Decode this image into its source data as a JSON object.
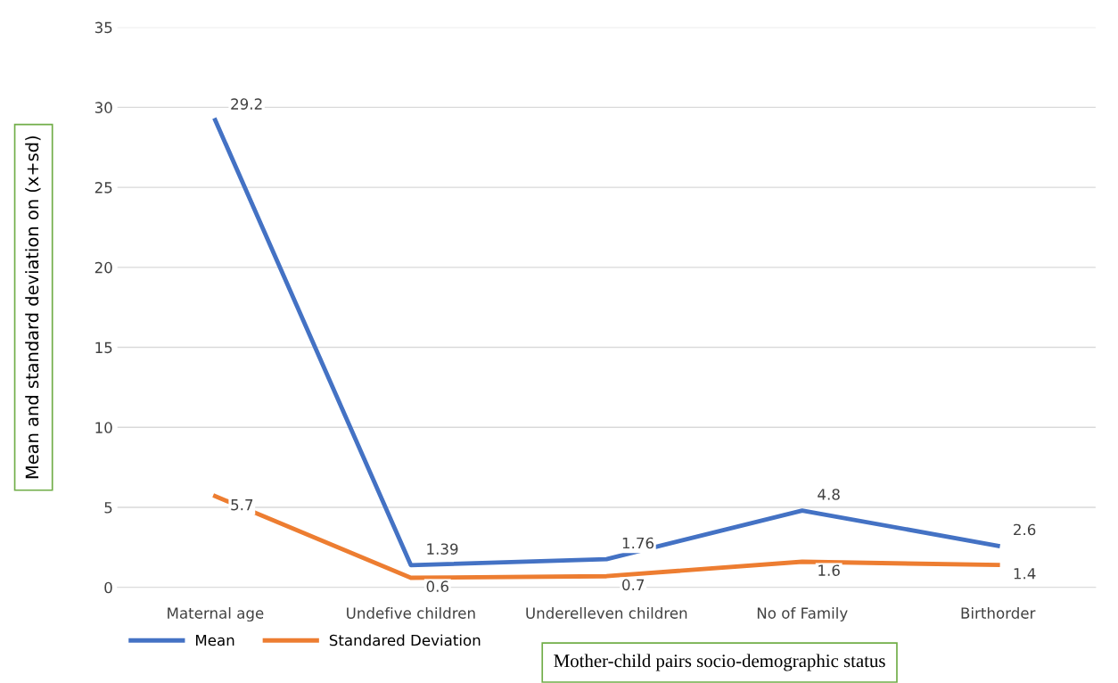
{
  "chart_data": {
    "type": "line",
    "categories": [
      "Maternal age",
      "Undefive children",
      "Underelleven children",
      "No of Family",
      "Birthorder"
    ],
    "series": [
      {
        "name": "Mean",
        "color": "#4472c4",
        "values": [
          29.2,
          1.39,
          1.76,
          4.8,
          2.6
        ]
      },
      {
        "name": "Standared Deviation",
        "color": "#ed7d31",
        "values": [
          5.7,
          0.6,
          0.7,
          1.6,
          1.4
        ]
      }
    ],
    "ylabel": "Mean and standard deviation on (x+sd)",
    "xlabel": "Mother-child pairs socio-demographic status",
    "ylim": [
      0,
      35
    ],
    "yticks": [
      0,
      5,
      10,
      15,
      20,
      25,
      30,
      35
    ],
    "grid": "y",
    "legend": "bottom left",
    "data_labels": true,
    "marker": "none",
    "line_style": "solid"
  }
}
